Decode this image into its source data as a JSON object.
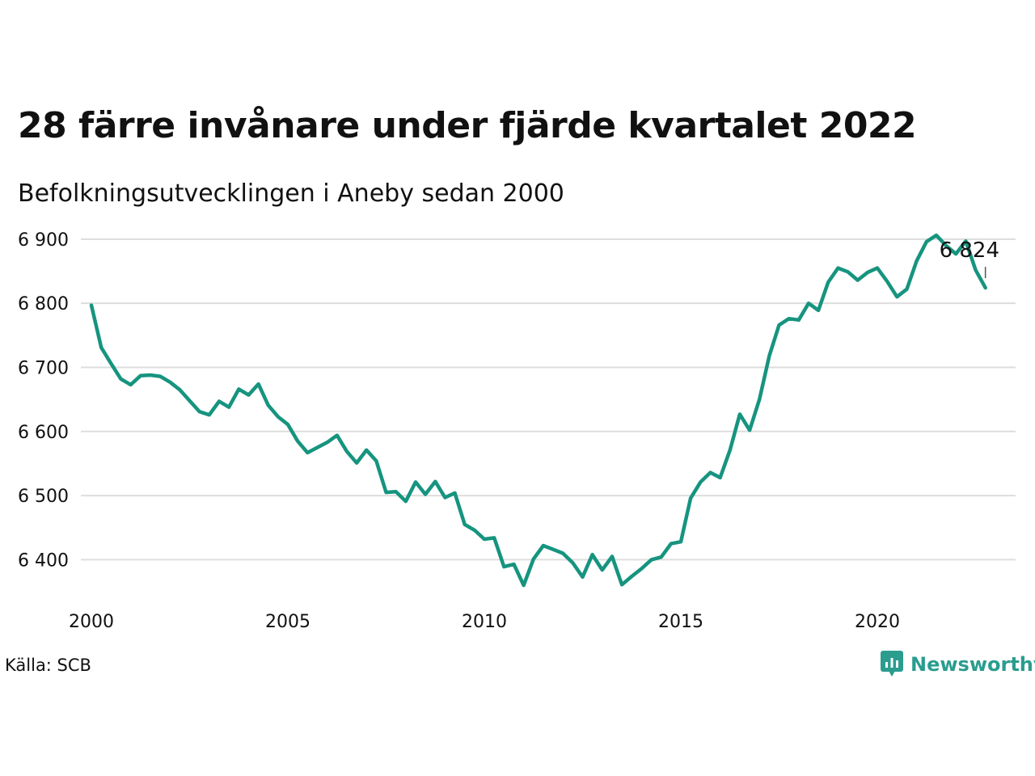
{
  "header": {
    "title": "28 färre invånare under fjärde kvartalet 2022",
    "subtitle": "Befolkningsutvecklingen i Aneby sedan 2000"
  },
  "footer": {
    "source": "Källa: SCB",
    "brand": "Newsworthy",
    "brand_icon": "bar-chart-speech-bubble-icon"
  },
  "colors": {
    "line": "#16947f",
    "grid": "#dddddd",
    "brand": "#2a9d8f"
  },
  "chart_data": {
    "type": "line",
    "title": "28 färre invånare under fjärde kvartalet 2022",
    "subtitle": "Befolkningsutvecklingen i Aneby sedan 2000",
    "xlabel": "",
    "ylabel": "",
    "grid": true,
    "legend": "none",
    "xlim": [
      2000,
      2023.75
    ],
    "ylim": [
      6340,
      6920
    ],
    "x_ticks": [
      2000,
      2005,
      2010,
      2015,
      2020
    ],
    "x_tick_labels": [
      "2000",
      "2005",
      "2010",
      "2015",
      "2020"
    ],
    "y_ticks": [
      6400,
      6500,
      6600,
      6700,
      6800,
      6900
    ],
    "y_tick_labels": [
      "6 400",
      "6 500",
      "6 600",
      "6 700",
      "6 800",
      "6 900"
    ],
    "end_label": "6 824",
    "series": [
      {
        "period_start": "2000 Q1",
        "frequency": "quarterly",
        "values": [
          6797,
          6731,
          6706,
          6682,
          6673,
          6687,
          6688,
          6686,
          6677,
          6665,
          6648,
          6631,
          6626,
          6647,
          6638,
          6666,
          6657,
          6674,
          6641,
          6623,
          6611,
          6585,
          6567,
          6575,
          6583,
          6594,
          6569,
          6551,
          6571,
          6554,
          6505,
          6506,
          6491,
          6521,
          6502,
          6522,
          6497,
          6504,
          6455,
          6446,
          6432,
          6434,
          6389,
          6393,
          6360,
          6401,
          6422,
          6416,
          6410,
          6395,
          6373,
          6408,
          6384,
          6405,
          6361,
          6374,
          6386,
          6400,
          6404,
          6425,
          6428,
          6496,
          6521,
          6536,
          6528,
          6571,
          6627,
          6602,
          6650,
          6718,
          6766,
          6776,
          6774,
          6800,
          6789,
          6833,
          6855,
          6849,
          6836,
          6848,
          6855,
          6834,
          6810,
          6822,
          6866,
          6896,
          6906,
          6890,
          6877,
          6897,
          6852,
          6824
        ]
      }
    ]
  }
}
